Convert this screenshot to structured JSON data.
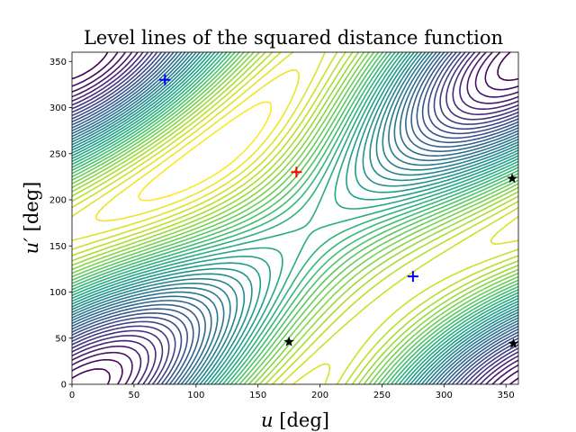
{
  "chart_data": {
    "type": "contour",
    "title": "Level lines of the squared distance function",
    "xlabel": "u [deg]",
    "ylabel": "u′ [deg]",
    "xlim": [
      0,
      360
    ],
    "ylim": [
      0,
      360
    ],
    "xticks": [
      0,
      50,
      100,
      150,
      200,
      250,
      300,
      350
    ],
    "yticks": [
      0,
      50,
      100,
      150,
      200,
      250,
      300,
      350
    ],
    "colormap": "viridis",
    "maximum_marker": {
      "x": 181,
      "y": 230,
      "symbol": "+",
      "color": "#ff0000"
    },
    "minimum_markers": [
      {
        "x": 75,
        "y": 330,
        "symbol": "+",
        "color": "#0000ff"
      },
      {
        "x": 275,
        "y": 117,
        "symbol": "+",
        "color": "#0000ff"
      }
    ],
    "saddle_markers": [
      {
        "x": 175,
        "y": 46,
        "symbol": "star",
        "color": "#000000"
      },
      {
        "x": 355,
        "y": 223,
        "symbol": "star",
        "color": "#000000"
      },
      {
        "x": 356,
        "y": 44,
        "symbol": "star",
        "color": "#000000"
      }
    ]
  }
}
